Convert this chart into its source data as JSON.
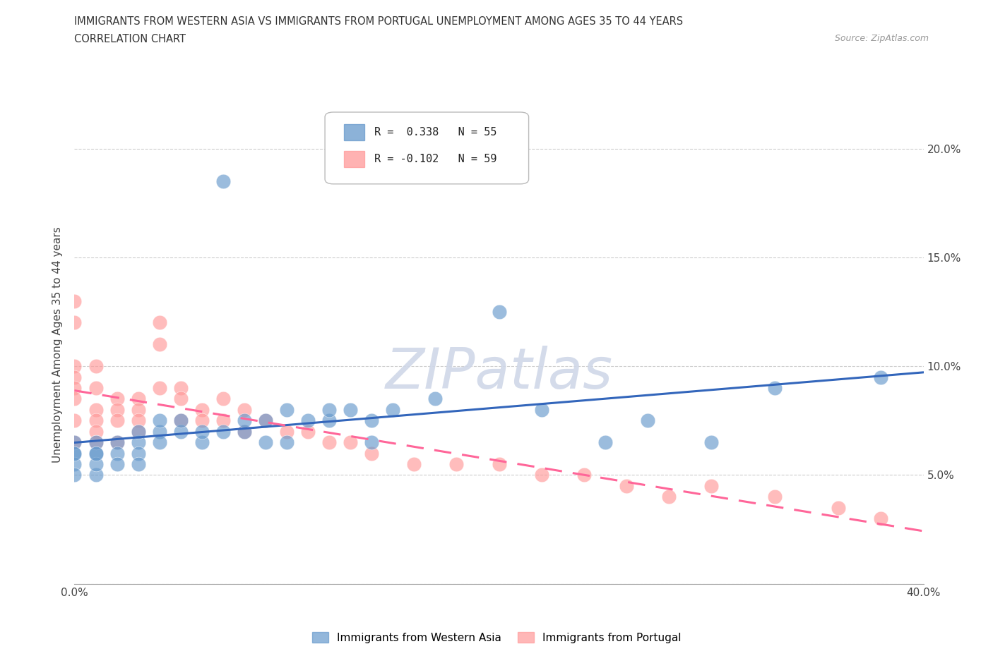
{
  "title_line1": "IMMIGRANTS FROM WESTERN ASIA VS IMMIGRANTS FROM PORTUGAL UNEMPLOYMENT AMONG AGES 35 TO 44 YEARS",
  "title_line2": "CORRELATION CHART",
  "source_text": "Source: ZipAtlas.com",
  "ylabel": "Unemployment Among Ages 35 to 44 years",
  "xlim": [
    0.0,
    0.4
  ],
  "ylim": [
    0.0,
    0.22
  ],
  "xticks": [
    0.0,
    0.05,
    0.1,
    0.15,
    0.2,
    0.25,
    0.3,
    0.35,
    0.4
  ],
  "xticklabels": [
    "0.0%",
    "",
    "",
    "",
    "",
    "",
    "",
    "",
    "40.0%"
  ],
  "yticks": [
    0.0,
    0.05,
    0.1,
    0.15,
    0.2
  ],
  "yticklabels_right": [
    "",
    "5.0%",
    "10.0%",
    "15.0%",
    "20.0%"
  ],
  "legend_text1": "R =  0.338   N = 55",
  "legend_text2": "R = -0.102   N = 59",
  "western_asia_color": "#6699CC",
  "portugal_color": "#FF9999",
  "trendline1_color": "#3366BB",
  "trendline2_color": "#FF6699",
  "background_color": "#FFFFFF",
  "grid_color": "#CCCCCC",
  "western_asia_x": [
    0.0,
    0.0,
    0.0,
    0.0,
    0.0,
    0.01,
    0.01,
    0.01,
    0.01,
    0.01,
    0.02,
    0.02,
    0.02,
    0.03,
    0.03,
    0.03,
    0.03,
    0.04,
    0.04,
    0.04,
    0.05,
    0.05,
    0.06,
    0.06,
    0.07,
    0.07,
    0.08,
    0.08,
    0.09,
    0.09,
    0.1,
    0.1,
    0.11,
    0.12,
    0.12,
    0.13,
    0.14,
    0.14,
    0.15,
    0.17,
    0.2,
    0.22,
    0.25,
    0.27,
    0.3,
    0.33,
    0.38
  ],
  "western_asia_y": [
    0.06,
    0.065,
    0.055,
    0.05,
    0.06,
    0.06,
    0.065,
    0.05,
    0.055,
    0.06,
    0.065,
    0.06,
    0.055,
    0.065,
    0.06,
    0.055,
    0.07,
    0.07,
    0.065,
    0.075,
    0.07,
    0.075,
    0.065,
    0.07,
    0.185,
    0.07,
    0.07,
    0.075,
    0.075,
    0.065,
    0.08,
    0.065,
    0.075,
    0.075,
    0.08,
    0.08,
    0.075,
    0.065,
    0.08,
    0.085,
    0.125,
    0.08,
    0.065,
    0.075,
    0.065,
    0.09,
    0.095
  ],
  "portugal_x": [
    0.0,
    0.0,
    0.0,
    0.0,
    0.0,
    0.0,
    0.0,
    0.0,
    0.01,
    0.01,
    0.01,
    0.01,
    0.01,
    0.01,
    0.02,
    0.02,
    0.02,
    0.02,
    0.03,
    0.03,
    0.03,
    0.03,
    0.04,
    0.04,
    0.04,
    0.05,
    0.05,
    0.05,
    0.06,
    0.06,
    0.07,
    0.07,
    0.08,
    0.08,
    0.09,
    0.1,
    0.11,
    0.12,
    0.13,
    0.14,
    0.16,
    0.18,
    0.2,
    0.22,
    0.24,
    0.26,
    0.28,
    0.3,
    0.33,
    0.36,
    0.38
  ],
  "portugal_y": [
    0.13,
    0.12,
    0.1,
    0.095,
    0.09,
    0.085,
    0.075,
    0.065,
    0.1,
    0.09,
    0.08,
    0.075,
    0.07,
    0.065,
    0.085,
    0.08,
    0.075,
    0.065,
    0.085,
    0.08,
    0.075,
    0.07,
    0.12,
    0.11,
    0.09,
    0.09,
    0.085,
    0.075,
    0.08,
    0.075,
    0.085,
    0.075,
    0.08,
    0.07,
    0.075,
    0.07,
    0.07,
    0.065,
    0.065,
    0.06,
    0.055,
    0.055,
    0.055,
    0.05,
    0.05,
    0.045,
    0.04,
    0.045,
    0.04,
    0.035,
    0.03
  ]
}
